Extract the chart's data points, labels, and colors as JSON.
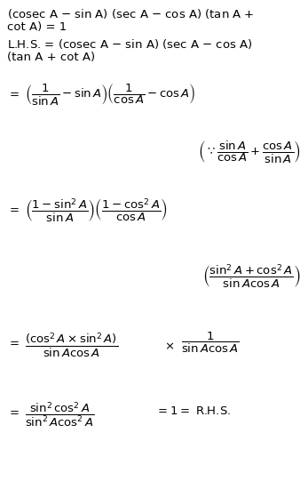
{
  "background_color": "#ffffff",
  "text_color": "#000000",
  "figsize": [
    3.47,
    5.41
  ],
  "dpi": 100,
  "fs": 9.5
}
